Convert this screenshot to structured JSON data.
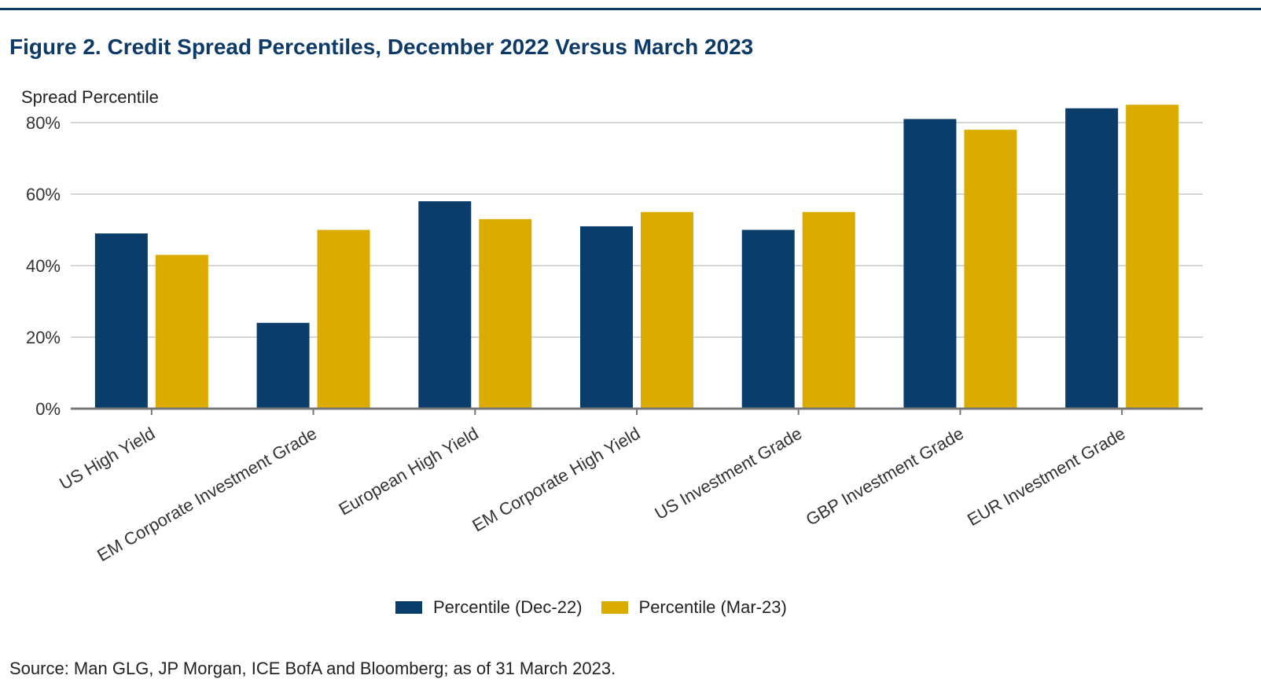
{
  "figure_title": "Figure 2. Credit Spread Percentiles, December 2022 Versus March 2023",
  "source_note": "Source: Man GLG, JP Morgan, ICE BofA and Bloomberg; as of 31 March 2023.",
  "colors": {
    "title": "#0d3a66",
    "series1": "#0b3d6b",
    "series2": "#dcab00",
    "grid": "#bdbdbd",
    "axis": "#777777"
  },
  "chart_data": {
    "type": "bar",
    "title": "Figure 2. Credit Spread Percentiles, December 2022 Versus March 2023",
    "xlabel": "",
    "ylabel": "Spread Percentile",
    "ylim": [
      0,
      80
    ],
    "yticks": [
      "0%",
      "20%",
      "40%",
      "60%",
      "80%"
    ],
    "ytick_values": [
      0,
      20,
      40,
      60,
      80
    ],
    "grid": true,
    "legend_position": "bottom",
    "categories": [
      "US High Yield",
      "EM Corporate Investment Grade",
      "European High Yield",
      "EM Corporate High Yield",
      "US Investment Grade",
      "GBP Investment Grade",
      "EUR Investment Grade"
    ],
    "series": [
      {
        "name": "Percentile (Dec-22)",
        "values": [
          49,
          24,
          58,
          51,
          50,
          81,
          84
        ]
      },
      {
        "name": "Percentile (Mar-23)",
        "values": [
          43,
          50,
          53,
          55,
          55,
          78,
          85
        ]
      }
    ]
  }
}
